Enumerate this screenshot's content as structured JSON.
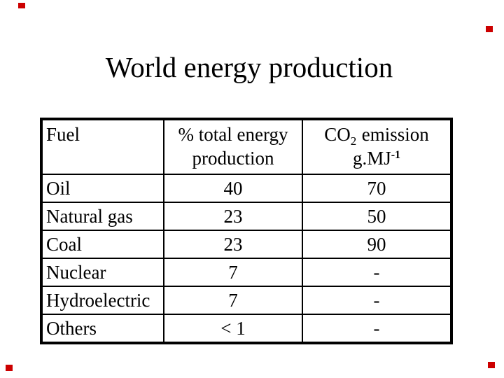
{
  "slide": {
    "title": "World energy production"
  },
  "table": {
    "header": {
      "fuel": "Fuel",
      "pct_line1": "% total energy",
      "pct_line2": "production",
      "co2_main": "CO",
      "co2_sub": "2",
      "co2_rest": "emission",
      "unit_main": "g.MJ",
      "unit_sup": "-1"
    },
    "rows": [
      {
        "fuel": "Oil",
        "pct": "40",
        "co2": "70"
      },
      {
        "fuel": "Natural gas",
        "pct": "23",
        "co2": "50"
      },
      {
        "fuel": "Coal",
        "pct": "23",
        "co2": "90"
      },
      {
        "fuel": "Nuclear",
        "pct": "7",
        "co2": "-"
      },
      {
        "fuel": "Hydroelectric",
        "pct": "7",
        "co2": "-"
      },
      {
        "fuel": "Others",
        "pct": "< 1",
        "co2": "-"
      }
    ]
  },
  "markers": {
    "color": "#cc0000"
  }
}
